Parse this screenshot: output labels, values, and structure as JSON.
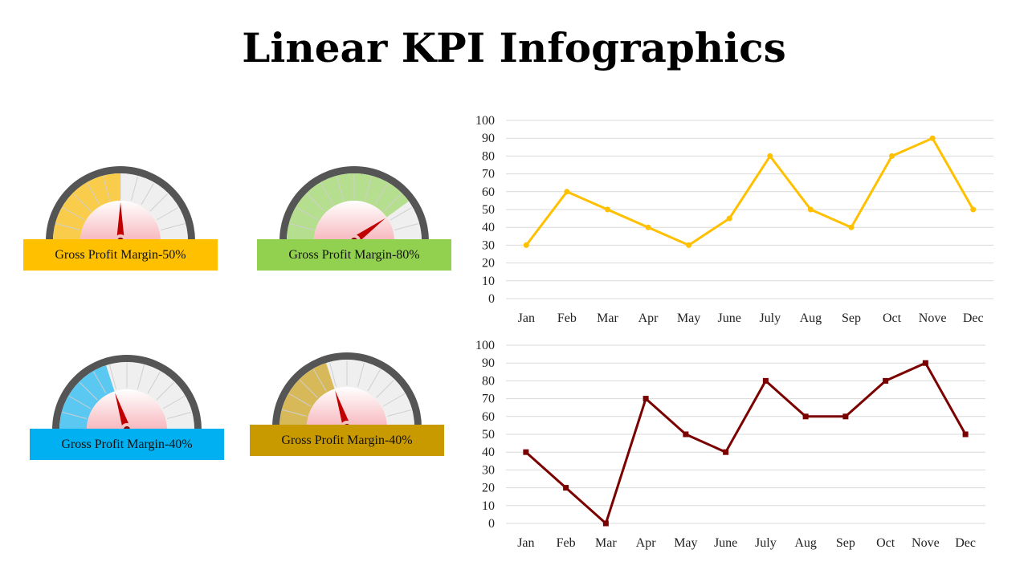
{
  "title": "Linear KPI Infographics",
  "gauges": [
    {
      "label": "Gross Profit Margin-50%",
      "value": 50,
      "fill_color": "#F9CD4B",
      "band_color": "#FFC000"
    },
    {
      "label": "Gross Profit Margin-80%",
      "value": 80,
      "fill_color": "#B5DE8F",
      "band_color": "#92D050"
    },
    {
      "label": "Gross Profit Margin-40%",
      "value": 40,
      "fill_color": "#5BC8F2",
      "band_color": "#00B0F0"
    },
    {
      "label": "Gross Profit Margin-40%",
      "value": 40,
      "fill_color": "#D8B95A",
      "band_color": "#C99A00"
    }
  ],
  "chart_data": [
    {
      "type": "line",
      "categories": [
        "Jan",
        "Feb",
        "Mar",
        "Apr",
        "May",
        "June",
        "July",
        "Aug",
        "Sep",
        "Oct",
        "Nove",
        "Dec"
      ],
      "series": [
        {
          "values": [
            30,
            60,
            50,
            40,
            30,
            45,
            80,
            50,
            40,
            80,
            90,
            50
          ],
          "color": "#FFC000",
          "marker": "circle"
        }
      ],
      "ylim": [
        0,
        100
      ],
      "yticks": [
        0,
        10,
        20,
        30,
        40,
        50,
        60,
        70,
        80,
        90,
        100
      ],
      "grid": true
    },
    {
      "type": "line",
      "categories": [
        "Jan",
        "Feb",
        "Mar",
        "Apr",
        "May",
        "June",
        "July",
        "Aug",
        "Sep",
        "Oct",
        "Nove",
        "Dec"
      ],
      "series": [
        {
          "values": [
            40,
            20,
            0,
            70,
            50,
            40,
            80,
            60,
            60,
            80,
            90,
            50
          ],
          "color": "#7B0000",
          "marker": "square"
        }
      ],
      "ylim": [
        0,
        100
      ],
      "yticks": [
        0,
        10,
        20,
        30,
        40,
        50,
        60,
        70,
        80,
        90,
        100
      ],
      "grid": true
    }
  ]
}
